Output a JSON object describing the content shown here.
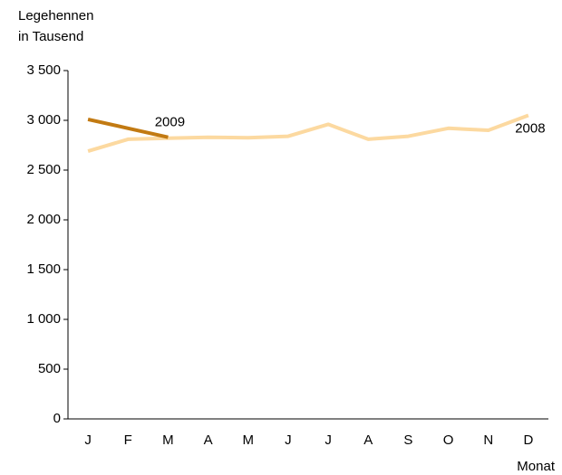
{
  "chart_data": {
    "type": "line",
    "y_label": [
      "Legehennen",
      "in Tausend"
    ],
    "x_label": "Monat",
    "categories": [
      "J",
      "F",
      "M",
      "A",
      "M",
      "J",
      "J",
      "A",
      "S",
      "O",
      "N",
      "D"
    ],
    "series": [
      {
        "name": "2008",
        "color": "#fcd9a0",
        "values": [
          2690,
          2810,
          2820,
          2830,
          2825,
          2840,
          2960,
          2810,
          2840,
          2920,
          2900,
          3050
        ]
      },
      {
        "name": "2009",
        "color": "#c27a12",
        "values": [
          3010,
          2920,
          2830,
          null,
          null,
          null,
          null,
          null,
          null,
          null,
          null,
          null
        ]
      }
    ],
    "ylim": [
      0,
      3500
    ],
    "yticks": [
      0,
      500,
      {
        "value": 1000,
        "label": "1 000"
      },
      {
        "value": 1500,
        "label": "1 500"
      },
      {
        "value": 2000,
        "label": "2 000"
      },
      {
        "value": 2500,
        "label": "2 500"
      },
      {
        "value": 3000,
        "label": "3 000"
      },
      {
        "value": 3500,
        "label": "3 500"
      }
    ],
    "grid": false
  }
}
